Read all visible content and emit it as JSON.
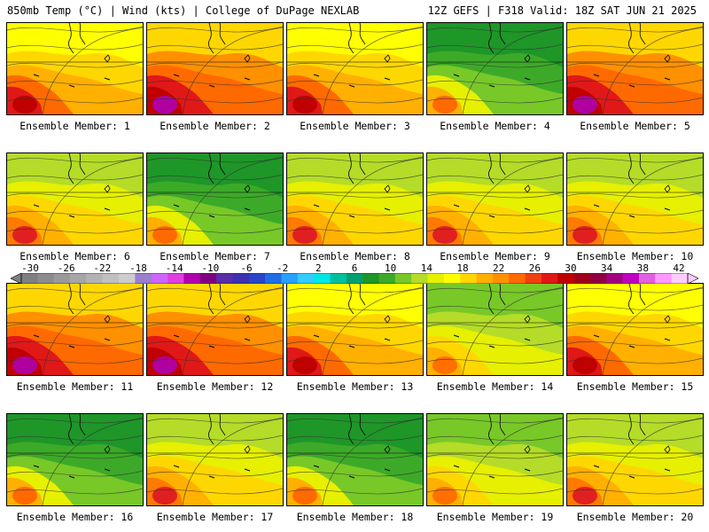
{
  "header": {
    "left": "850mb Temp (°C) | Wind (kts) | College of DuPage NEXLAB",
    "right": "12Z GEFS | F318 Valid: 18Z SAT JUN 21 2025"
  },
  "colorbar": {
    "tick_labels": [
      "-30",
      "-26",
      "-22",
      "-18",
      "-14",
      "-10",
      "-6",
      "-2",
      "2",
      "6",
      "10",
      "14",
      "18",
      "22",
      "26",
      "30",
      "34",
      "38",
      "42"
    ],
    "colors": [
      "#7f7f7f",
      "#8c8c8c",
      "#999999",
      "#a6a6a6",
      "#b3b3b3",
      "#c0c0c0",
      "#cdcdcd",
      "#9b7fcf",
      "#cc66ff",
      "#e040e0",
      "#b000b0",
      "#800080",
      "#5a2ea6",
      "#3f30b0",
      "#2a45c8",
      "#1f6ee6",
      "#2aa0ff",
      "#33ccff",
      "#00e6e6",
      "#00c0a0",
      "#00a070",
      "#1e9628",
      "#3caa28",
      "#78c828",
      "#b4dc28",
      "#e6f000",
      "#ffff00",
      "#ffd700",
      "#ffb000",
      "#ff9000",
      "#ff6a00",
      "#f04010",
      "#e01818",
      "#c00000",
      "#a00018",
      "#900040",
      "#a00080",
      "#c000c0",
      "#e060e0",
      "#ff99ff",
      "#ffccff"
    ]
  },
  "panels": [
    {
      "label": "Ensemble Member: 1",
      "theme": "hot"
    },
    {
      "label": "Ensemble Member: 2",
      "theme": "vhot"
    },
    {
      "label": "Ensemble Member: 3",
      "theme": "hot"
    },
    {
      "label": "Ensemble Member: 4",
      "theme": "cool"
    },
    {
      "label": "Ensemble Member: 5",
      "theme": "vhot"
    },
    {
      "label": "Ensemble Member: 6",
      "theme": "warm"
    },
    {
      "label": "Ensemble Member: 7",
      "theme": "cool"
    },
    {
      "label": "Ensemble Member: 8",
      "theme": "warm"
    },
    {
      "label": "Ensemble Member: 9",
      "theme": "warm"
    },
    {
      "label": "Ensemble Member: 10",
      "theme": "warm"
    },
    {
      "label": "Ensemble Member: 11",
      "theme": "vhot"
    },
    {
      "label": "Ensemble Member: 12",
      "theme": "vhot"
    },
    {
      "label": "Ensemble Member: 13",
      "theme": "hot"
    },
    {
      "label": "Ensemble Member: 14",
      "theme": "mild"
    },
    {
      "label": "Ensemble Member: 15",
      "theme": "hot"
    },
    {
      "label": "Ensemble Member: 16",
      "theme": "cool"
    },
    {
      "label": "Ensemble Member: 17",
      "theme": "warm"
    },
    {
      "label": "Ensemble Member: 18",
      "theme": "cool"
    },
    {
      "label": "Ensemble Member: 19",
      "theme": "mild"
    },
    {
      "label": "Ensemble Member: 20",
      "theme": "warm"
    }
  ]
}
